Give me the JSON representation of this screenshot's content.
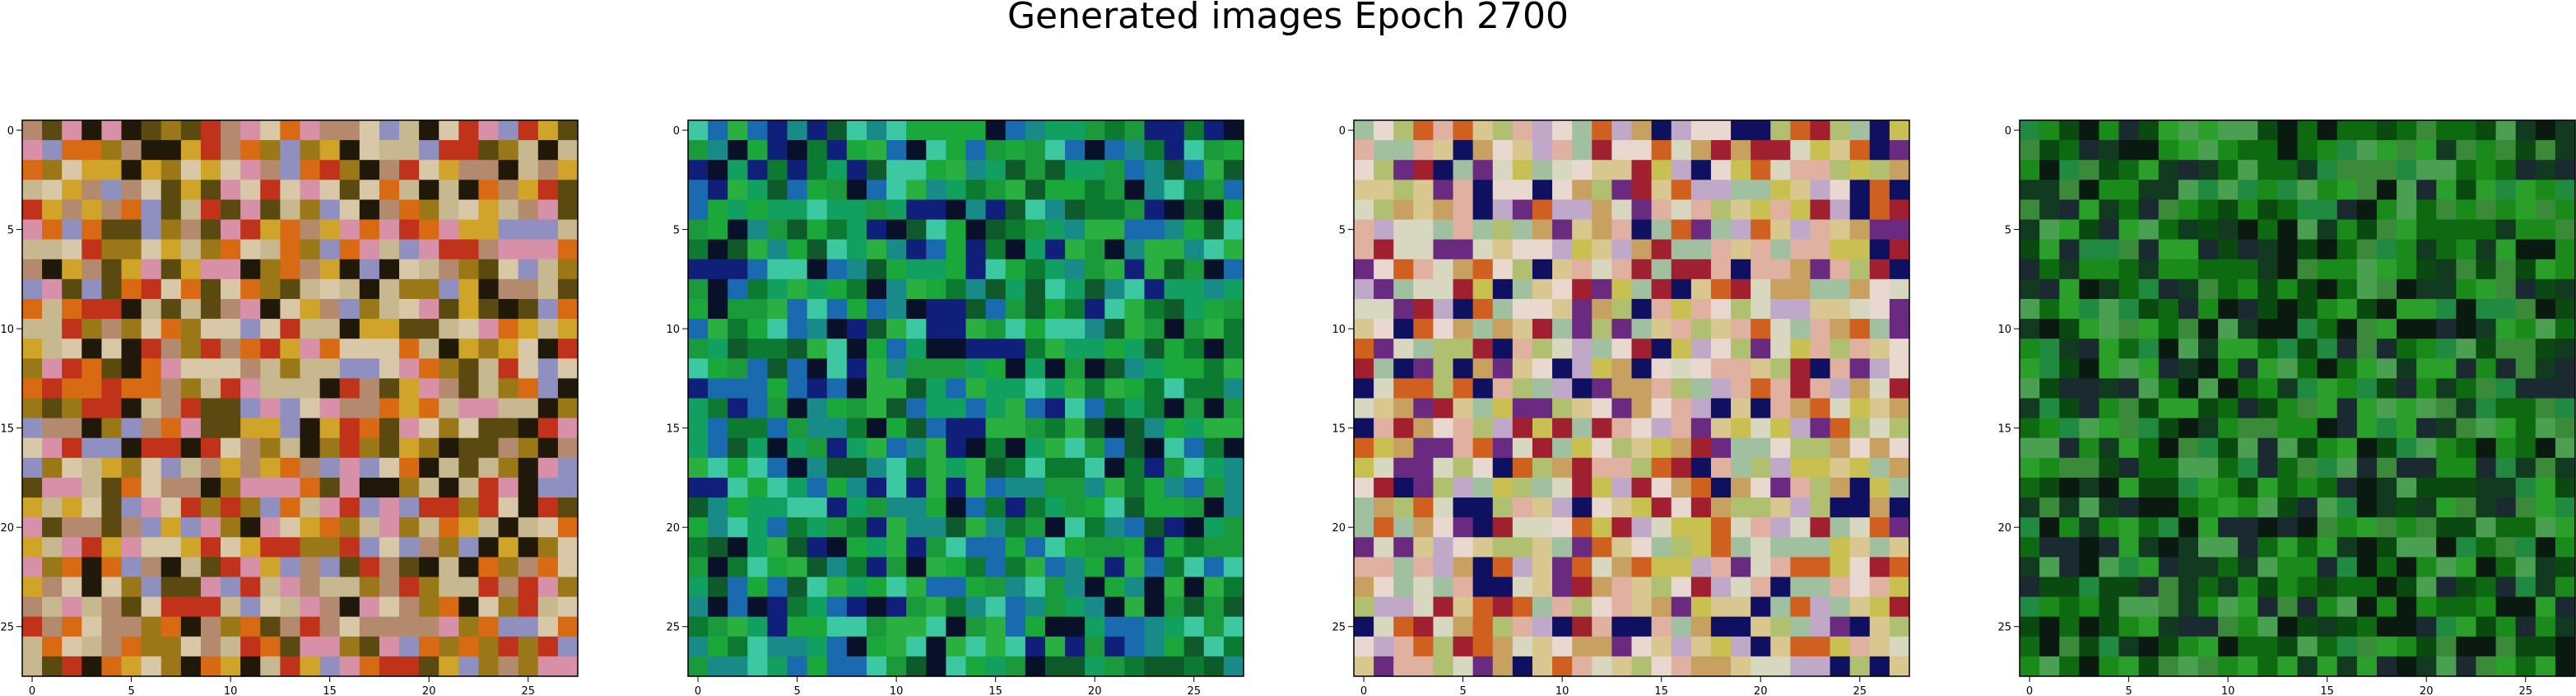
{
  "figure": {
    "title": "Generated images Epoch 2700"
  },
  "chart_data": [
    {
      "type": "heatmap",
      "title": "",
      "xlabel": "",
      "ylabel": "",
      "xticks": [
        0,
        5,
        10,
        15,
        20,
        25
      ],
      "yticks": [
        0,
        5,
        10,
        15,
        20,
        25
      ],
      "xlim": [
        -0.5,
        27.5
      ],
      "ylim": [
        27.5,
        -0.5
      ],
      "grid_size": [
        28,
        28
      ],
      "palette": [
        "#d8c8a8",
        "#9a7818",
        "#5a4a10",
        "#201808",
        "#d86a14",
        "#c0321a",
        "#cfa428",
        "#b48a6e",
        "#d890a8",
        "#9090c0",
        "#c8b890"
      ]
    },
    {
      "type": "heatmap",
      "title": "",
      "xlabel": "",
      "ylabel": "",
      "xticks": [
        0,
        5,
        10,
        15,
        20,
        25
      ],
      "yticks": [
        0,
        5,
        10,
        15,
        20,
        25
      ],
      "xlim": [
        -0.5,
        27.5
      ],
      "ylim": [
        27.5,
        -0.5
      ],
      "grid_size": [
        28,
        28
      ],
      "palette": [
        "#1a9a3a",
        "#0c7a30",
        "#0e5a2a",
        "#12a060",
        "#188a88",
        "#1a6ab0",
        "#10207a",
        "#08102a",
        "#3cc8a0",
        "#1aa83a",
        "#2ab040"
      ]
    },
    {
      "type": "heatmap",
      "title": "",
      "xlabel": "",
      "ylabel": "",
      "xticks": [
        0,
        5,
        10,
        15,
        20,
        25
      ],
      "yticks": [
        0,
        5,
        10,
        15,
        20,
        25
      ],
      "xlim": [
        -0.5,
        27.5
      ],
      "ylim": [
        27.5,
        -0.5
      ],
      "grid_size": [
        28,
        28
      ],
      "palette": [
        "#d8c890",
        "#c8c050",
        "#b0c070",
        "#e0b0a0",
        "#c0a8c8",
        "#d8d8c0",
        "#a02030",
        "#d06020",
        "#6a2a80",
        "#101060",
        "#e8d8d0",
        "#a0c0a0",
        "#c8a060"
      ]
    },
    {
      "type": "heatmap",
      "title": "",
      "xlabel": "",
      "ylabel": "",
      "xticks": [
        0,
        5,
        10,
        15,
        20,
        25
      ],
      "yticks": [
        0,
        5,
        10,
        15,
        20,
        25
      ],
      "xlim": [
        -0.5,
        27.5
      ],
      "ylim": [
        27.5,
        -0.5
      ],
      "grid_size": [
        28,
        28
      ],
      "palette": [
        "#1a8a1a",
        "#0e6a10",
        "#2aa02a",
        "#0a4a10",
        "#3a8a3a",
        "#123a20",
        "#1a2a30",
        "#0a1a10",
        "#4aa050",
        "#208a40"
      ]
    }
  ]
}
